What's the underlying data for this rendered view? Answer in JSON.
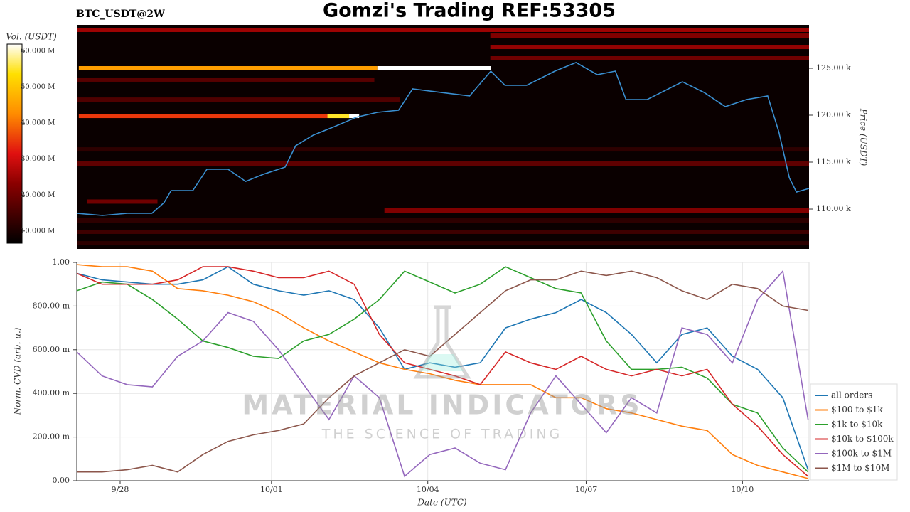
{
  "title": "Gomzi's Trading REF:53305",
  "watermark": {
    "title": "MATERIAL INDICATORS",
    "subtitle": "THE SCIENCE OF TRADING"
  },
  "chart_data": [
    {
      "type": "heatmap",
      "label": "BTC_USDT@2W",
      "y_label": "Price (USDT)",
      "xlim": [
        0,
        14.52
      ],
      "ylim": [
        105760,
        129620
      ],
      "yticks": [
        {
          "value": 110000,
          "label": "110.00 k"
        },
        {
          "value": 115000,
          "label": "115.00 k"
        },
        {
          "value": 120000,
          "label": "120.00 k"
        },
        {
          "value": 125000,
          "label": "125.00 k"
        }
      ],
      "colorbar": {
        "label": "Vol. (USDT)",
        "lim": [
          6600000,
          62000000
        ],
        "ticks": [
          {
            "value": 10000000,
            "label": "10.000 M"
          },
          {
            "value": 20000000,
            "label": "20.000 M"
          },
          {
            "value": 30000000,
            "label": "30.000 M"
          },
          {
            "value": 40000000,
            "label": "40.000 M"
          },
          {
            "value": 50000000,
            "label": "50.000 M"
          },
          {
            "value": 60000000,
            "label": "60.000 M"
          }
        ]
      },
      "bands": [
        {
          "price": 125000,
          "x": [
            0.04,
            5.96
          ],
          "volume": 45000000
        },
        {
          "price": 125000,
          "x": [
            5.96,
            8.21
          ],
          "volume": 62000000
        },
        {
          "price": 119920,
          "x": [
            0.04,
            4.97
          ],
          "volume": 35000000
        },
        {
          "price": 119920,
          "x": [
            4.97,
            5.4
          ],
          "volume": 55000000
        },
        {
          "price": 119920,
          "x": [
            5.4,
            5.6
          ],
          "volume": 62000000
        },
        {
          "price": 114850,
          "x": [
            0,
            14.52
          ],
          "volume": 18000000
        },
        {
          "price": 109850,
          "x": [
            6.1,
            14.52
          ],
          "volume": 22000000
        },
        {
          "price": 110800,
          "x": [
            0.2,
            1.6
          ],
          "volume": 20000000
        },
        {
          "price": 129090,
          "x": [
            0,
            14.52
          ],
          "volume": 25000000
        },
        {
          "price": 128480,
          "x": [
            8.2,
            14.52
          ],
          "volume": 22000000
        },
        {
          "price": 127270,
          "x": [
            8.2,
            14.52
          ],
          "volume": 24000000
        },
        {
          "price": 126060,
          "x": [
            8.2,
            14.52
          ],
          "volume": 20000000
        },
        {
          "price": 121660,
          "x": [
            0,
            6.4
          ],
          "volume": 16000000
        },
        {
          "price": 123790,
          "x": [
            0,
            5.9
          ],
          "volume": 17000000
        },
        {
          "price": 108790,
          "x": [
            0,
            14.52
          ],
          "volume": 12000000
        },
        {
          "price": 107580,
          "x": [
            0,
            14.52
          ],
          "volume": 14000000
        },
        {
          "price": 106360,
          "x": [
            0,
            14.52
          ],
          "volume": 12000000
        },
        {
          "price": 116360,
          "x": [
            0,
            14.52
          ],
          "volume": 12000000
        }
      ],
      "x": [
        0,
        0.51,
        1.0,
        1.49,
        1.73,
        1.87,
        2.3,
        2.58,
        3.0,
        3.35,
        3.7,
        4.13,
        4.34,
        4.69,
        5.11,
        5.54,
        5.96,
        6.38,
        6.66,
        7.23,
        7.79,
        8.21,
        8.49,
        8.92,
        9.48,
        9.9,
        10.32,
        10.68,
        10.89,
        11.31,
        11.73,
        12.01,
        12.44,
        12.86,
        13.28,
        13.7,
        13.92,
        14.13,
        14.27,
        14.52
      ],
      "price": {
        "color": "#3a8fd0",
        "values": [
          109550,
          109320,
          109550,
          109550,
          110680,
          111970,
          111970,
          114240,
          114240,
          112950,
          113710,
          114470,
          116740,
          117880,
          118790,
          119770,
          120300,
          120530,
          122800,
          122420,
          122050,
          124700,
          123180,
          123180,
          124700,
          125610,
          124320,
          124700,
          121670,
          121670,
          122800,
          123560,
          122420,
          120910,
          121670,
          122050,
          118260,
          113330,
          111820,
          112200
        ]
      }
    },
    {
      "type": "line",
      "x_label": "Date (UTC)",
      "y_label": "Norm. CVD (arb. u.)",
      "xlim": [
        0,
        14.52
      ],
      "ylim": [
        0,
        1
      ],
      "grid": true,
      "legend": "lower-right",
      "xticks": [
        {
          "value": 0.86,
          "label": "9/28"
        },
        {
          "value": 3.86,
          "label": "10/01"
        },
        {
          "value": 6.96,
          "label": "10/04"
        },
        {
          "value": 10.1,
          "label": "10/07"
        },
        {
          "value": 13.2,
          "label": "10/10"
        }
      ],
      "yticks": [
        {
          "value": 0,
          "label": "0.00"
        },
        {
          "value": 0.2,
          "label": "200.00 m"
        },
        {
          "value": 0.4,
          "label": "400.00 m"
        },
        {
          "value": 0.6,
          "label": "600.00 m"
        },
        {
          "value": 0.8,
          "label": "800.00 m"
        },
        {
          "value": 1,
          "label": "1.00"
        }
      ],
      "x": [
        0,
        0.5,
        1,
        1.5,
        2,
        2.5,
        3,
        3.5,
        4,
        4.5,
        5,
        5.5,
        6,
        6.5,
        7,
        7.5,
        8,
        8.5,
        9,
        9.5,
        10,
        10.5,
        11,
        11.5,
        12,
        12.5,
        13,
        13.5,
        14,
        14.5
      ],
      "series": [
        {
          "name": "all orders",
          "color": "#1f77b4",
          "values": [
            0.95,
            0.92,
            0.91,
            0.9,
            0.9,
            0.92,
            0.98,
            0.9,
            0.87,
            0.85,
            0.87,
            0.83,
            0.7,
            0.51,
            0.54,
            0.52,
            0.54,
            0.7,
            0.74,
            0.77,
            0.83,
            0.77,
            0.67,
            0.54,
            0.67,
            0.7,
            0.57,
            0.51,
            0.38,
            0.05
          ]
        },
        {
          "name": "$100 to $1k",
          "color": "#ff7f0e",
          "values": [
            0.99,
            0.98,
            0.98,
            0.96,
            0.88,
            0.87,
            0.85,
            0.82,
            0.77,
            0.7,
            0.64,
            0.59,
            0.54,
            0.51,
            0.49,
            0.46,
            0.44,
            0.44,
            0.44,
            0.38,
            0.38,
            0.33,
            0.31,
            0.28,
            0.25,
            0.23,
            0.12,
            0.07,
            0.04,
            0.01
          ]
        },
        {
          "name": "$1k to $10k",
          "color": "#2ca02c",
          "values": [
            0.87,
            0.91,
            0.9,
            0.83,
            0.74,
            0.64,
            0.61,
            0.57,
            0.56,
            0.64,
            0.67,
            0.74,
            0.83,
            0.96,
            0.91,
            0.86,
            0.9,
            0.98,
            0.93,
            0.88,
            0.86,
            0.64,
            0.51,
            0.51,
            0.52,
            0.47,
            0.35,
            0.31,
            0.15,
            0.04
          ]
        },
        {
          "name": "$10k to $100k",
          "color": "#d62728",
          "values": [
            0.95,
            0.9,
            0.9,
            0.9,
            0.92,
            0.98,
            0.98,
            0.96,
            0.93,
            0.93,
            0.96,
            0.9,
            0.67,
            0.54,
            0.51,
            0.48,
            0.44,
            0.59,
            0.54,
            0.51,
            0.57,
            0.51,
            0.48,
            0.51,
            0.48,
            0.51,
            0.35,
            0.25,
            0.12,
            0.02
          ]
        },
        {
          "name": "$100k to $1M",
          "color": "#9467bd",
          "values": [
            0.59,
            0.48,
            0.44,
            0.43,
            0.57,
            0.64,
            0.77,
            0.73,
            0.6,
            0.44,
            0.28,
            0.48,
            0.38,
            0.02,
            0.12,
            0.15,
            0.08,
            0.05,
            0.31,
            0.48,
            0.35,
            0.22,
            0.38,
            0.31,
            0.7,
            0.67,
            0.54,
            0.83,
            0.96,
            0.28
          ]
        },
        {
          "name": "$1M to $10M",
          "color": "#8c564b",
          "values": [
            0.04,
            0.04,
            0.05,
            0.07,
            0.04,
            0.12,
            0.18,
            0.21,
            0.23,
            0.26,
            0.38,
            0.48,
            0.54,
            0.6,
            0.57,
            0.67,
            0.77,
            0.87,
            0.92,
            0.92,
            0.96,
            0.94,
            0.96,
            0.93,
            0.87,
            0.83,
            0.9,
            0.88,
            0.8,
            0.78
          ]
        }
      ]
    }
  ]
}
